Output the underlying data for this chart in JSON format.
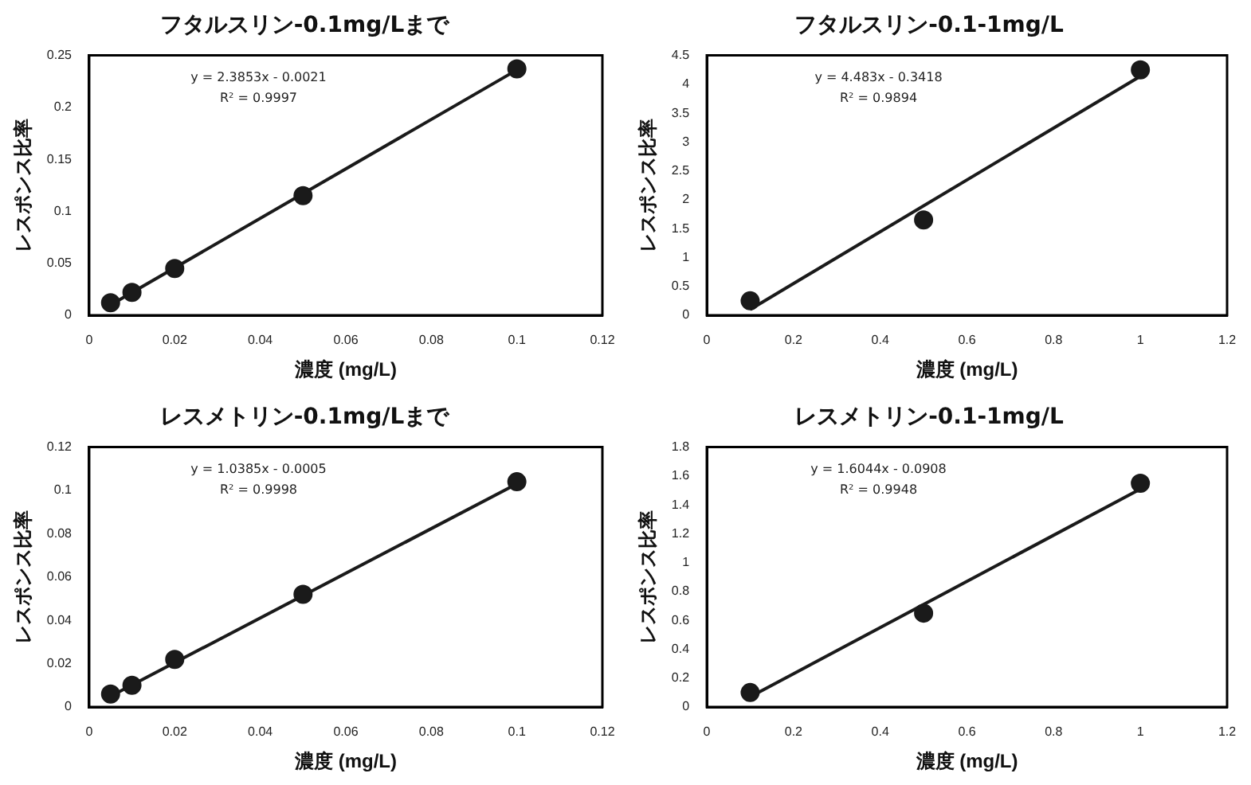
{
  "chart_data": [
    {
      "type": "scatter",
      "title": "フタルスリン-0.1mg/Lまで",
      "xlabel": "濃度 (mg/L)",
      "ylabel": "レスポンス比率",
      "x": [
        0.005,
        0.01,
        0.02,
        0.05,
        0.1
      ],
      "xlim": [
        0,
        0.12
      ],
      "xticks": [
        0,
        0.02,
        0.04,
        0.06,
        0.08,
        0.1,
        0.12
      ],
      "ylim": [
        0,
        0.25
      ],
      "yticks": [
        0,
        0.05,
        0.1,
        0.15,
        0.2,
        0.25
      ],
      "grid": false,
      "legend": false,
      "annotations": [
        "y = 2.3853x - 0.0021",
        "R² = 0.9997"
      ],
      "series": [
        {
          "color": "#1a1a1a",
          "marker": "circle",
          "values": [
            0.012,
            0.022,
            0.045,
            0.115,
            0.237
          ]
        },
        {
          "type": "line",
          "marker": "none",
          "color": "#1a1a1a",
          "x": [
            0.005,
            0.1
          ],
          "values": [
            0.01,
            0.236
          ]
        }
      ]
    },
    {
      "type": "scatter",
      "title": "フタルスリン-0.1-1mg/L",
      "xlabel": "濃度 (mg/L)",
      "ylabel": "レスポンス比率",
      "x": [
        0.1,
        0.5,
        1
      ],
      "xlim": [
        0,
        1.2
      ],
      "xticks": [
        0,
        0.2,
        0.4,
        0.6,
        0.8,
        1,
        1.2
      ],
      "ylim": [
        0,
        4.5
      ],
      "yticks": [
        0,
        0.5,
        1,
        1.5,
        2,
        2.5,
        3,
        3.5,
        4,
        4.5
      ],
      "grid": false,
      "legend": false,
      "annotations": [
        "y = 4.483x - 0.3418",
        "R² = 0.9894"
      ],
      "series": [
        {
          "color": "#1a1a1a",
          "marker": "circle",
          "values": [
            0.25,
            1.65,
            4.25
          ]
        },
        {
          "type": "line",
          "marker": "none",
          "color": "#1a1a1a",
          "x": [
            0.1,
            1
          ],
          "values": [
            0.1,
            4.14
          ]
        }
      ]
    },
    {
      "type": "scatter",
      "title": "レスメトリン-0.1mg/Lまで",
      "xlabel": "濃度 (mg/L)",
      "ylabel": "レスポンス比率",
      "x": [
        0.005,
        0.01,
        0.02,
        0.05,
        0.1
      ],
      "xlim": [
        0,
        0.12
      ],
      "xticks": [
        0,
        0.02,
        0.04,
        0.06,
        0.08,
        0.1,
        0.12
      ],
      "ylim": [
        0,
        0.12
      ],
      "yticks": [
        0,
        0.02,
        0.04,
        0.06,
        0.08,
        0.1,
        0.12
      ],
      "grid": false,
      "legend": false,
      "annotations": [
        "y = 1.0385x - 0.0005",
        "R² = 0.9998"
      ],
      "series": [
        {
          "color": "#1a1a1a",
          "marker": "circle",
          "values": [
            0.006,
            0.01,
            0.022,
            0.052,
            0.104
          ]
        },
        {
          "type": "line",
          "marker": "none",
          "color": "#1a1a1a",
          "x": [
            0.005,
            0.1
          ],
          "values": [
            0.005,
            0.103
          ]
        }
      ]
    },
    {
      "type": "scatter",
      "title": "レスメトリン-0.1-1mg/L",
      "xlabel": "濃度 (mg/L)",
      "ylabel": "レスポンス比率",
      "x": [
        0.1,
        0.5,
        1
      ],
      "xlim": [
        0,
        1.2
      ],
      "xticks": [
        0,
        0.2,
        0.4,
        0.6,
        0.8,
        1,
        1.2
      ],
      "ylim": [
        0,
        1.8
      ],
      "yticks": [
        0,
        0.2,
        0.4,
        0.6,
        0.8,
        1,
        1.2,
        1.4,
        1.6,
        1.8
      ],
      "grid": false,
      "legend": false,
      "annotations": [
        "y = 1.6044x - 0.0908",
        "R² = 0.9948"
      ],
      "series": [
        {
          "color": "#1a1a1a",
          "marker": "circle",
          "values": [
            0.1,
            0.65,
            1.55
          ]
        },
        {
          "type": "line",
          "marker": "none",
          "color": "#1a1a1a",
          "x": [
            0.1,
            1
          ],
          "values": [
            0.07,
            1.51
          ]
        }
      ]
    }
  ]
}
